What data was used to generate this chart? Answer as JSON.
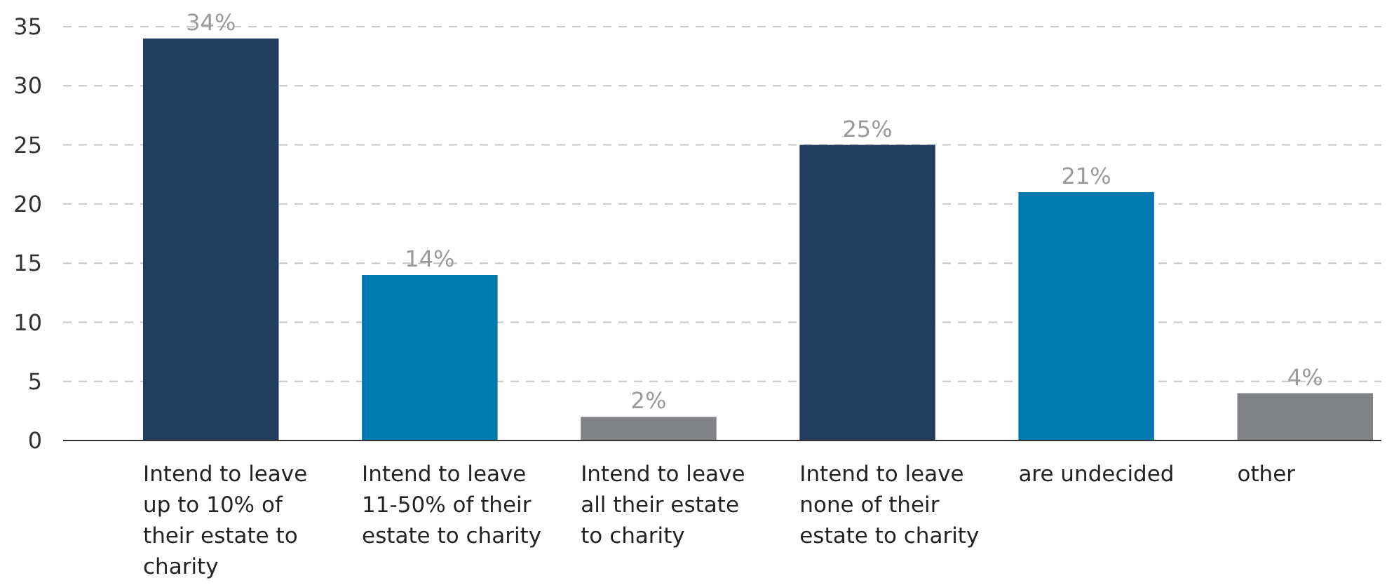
{
  "chart_data": {
    "type": "bar",
    "categories": [
      "Intend to leave up to 10% of their estate to charity",
      "Intend to leave 11-50% of their estate to charity",
      "Intend to leave all their estate to charity",
      "Intend to leave none of their estate to charity",
      "are undecided",
      "other"
    ],
    "values": [
      34,
      14,
      2,
      25,
      21,
      4
    ],
    "colors": [
      "#213d5e",
      "#0079b1",
      "#808285",
      "#213d5e",
      "#0079b1",
      "#808285"
    ],
    "value_labels": [
      "34%",
      "14%",
      "2%",
      "25%",
      "21%",
      "4%"
    ],
    "ylim": [
      0,
      35
    ],
    "yticks": [
      0,
      5,
      10,
      15,
      20,
      25,
      30,
      35
    ],
    "grid": "y"
  }
}
